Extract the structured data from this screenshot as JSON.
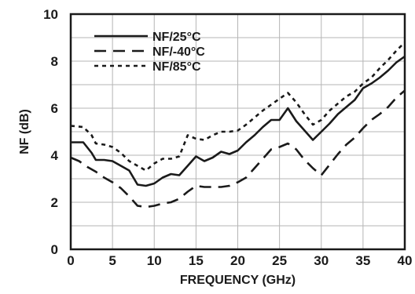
{
  "chart_data": {
    "type": "line",
    "title": "",
    "xlabel": "FREQUENCY (GHz)",
    "ylabel": "NF (dB)",
    "xlim": [
      0,
      40
    ],
    "ylim": [
      0,
      10
    ],
    "x_ticks": [
      0,
      5,
      10,
      15,
      20,
      25,
      30,
      35,
      40
    ],
    "y_ticks": [
      0,
      2,
      4,
      6,
      8,
      10
    ],
    "grid": true,
    "legend_position": "top-left",
    "series": [
      {
        "name": "NF/25°C",
        "dash": "solid",
        "color": "#1a1a1a",
        "x": [
          0,
          1.5,
          2.5,
          3,
          4,
          5,
          6,
          7,
          8,
          9,
          10,
          11,
          12,
          13,
          14,
          15,
          16,
          17,
          18,
          19,
          20,
          21,
          22,
          23,
          24,
          25,
          26,
          27,
          28,
          29,
          30,
          31,
          32,
          33,
          34,
          35,
          36,
          37,
          38,
          39,
          40
        ],
        "y": [
          4.55,
          4.55,
          4.1,
          3.8,
          3.8,
          3.75,
          3.55,
          3.35,
          2.75,
          2.7,
          2.8,
          3.05,
          3.2,
          3.15,
          3.55,
          3.95,
          3.75,
          3.9,
          4.15,
          4.05,
          4.2,
          4.55,
          4.85,
          5.2,
          5.5,
          5.5,
          6.0,
          5.45,
          5.05,
          4.65,
          5.0,
          5.35,
          5.75,
          6.05,
          6.35,
          6.85,
          7.05,
          7.3,
          7.6,
          7.95,
          8.2
        ]
      },
      {
        "name": "NF/-40°C",
        "dash": "long-dash",
        "color": "#1a1a1a",
        "x": [
          0,
          1,
          2,
          3,
          4,
          5,
          6,
          7,
          8,
          9,
          10,
          11,
          12,
          13,
          14,
          15,
          16,
          17,
          18,
          19,
          20,
          21,
          22,
          23,
          24,
          25,
          26,
          27,
          28,
          29,
          30,
          31,
          32,
          33,
          34,
          35,
          36,
          37,
          38,
          39,
          40
        ],
        "y": [
          3.9,
          3.75,
          3.5,
          3.3,
          3.05,
          2.85,
          2.6,
          2.25,
          1.85,
          1.8,
          1.85,
          1.95,
          2.0,
          2.15,
          2.45,
          2.7,
          2.65,
          2.65,
          2.65,
          2.7,
          2.85,
          3.05,
          3.45,
          3.85,
          4.25,
          4.35,
          4.5,
          4.25,
          3.8,
          3.45,
          3.15,
          3.6,
          4.05,
          4.45,
          4.75,
          5.15,
          5.5,
          5.75,
          6.05,
          6.45,
          6.75
        ]
      },
      {
        "name": "NF/85°C",
        "dash": "short-dash",
        "color": "#1a1a1a",
        "x": [
          0,
          1.5,
          2.5,
          3,
          4,
          5,
          6,
          7,
          8,
          9,
          10,
          11,
          12,
          13,
          14,
          15,
          16,
          17,
          18,
          19,
          20,
          21,
          22,
          23,
          24,
          25,
          26,
          27,
          28,
          29,
          30,
          31,
          32,
          33,
          34,
          35,
          36,
          37,
          38,
          39,
          40
        ],
        "y": [
          5.25,
          5.2,
          4.85,
          4.5,
          4.45,
          4.35,
          4.1,
          3.75,
          3.55,
          3.35,
          3.65,
          3.85,
          3.85,
          3.95,
          4.85,
          4.7,
          4.65,
          4.85,
          5.0,
          5.0,
          5.05,
          5.3,
          5.6,
          5.9,
          6.15,
          6.4,
          6.65,
          6.25,
          5.75,
          5.3,
          5.5,
          5.9,
          6.2,
          6.5,
          6.7,
          7.05,
          7.3,
          7.7,
          8.05,
          8.45,
          8.8
        ]
      }
    ]
  }
}
